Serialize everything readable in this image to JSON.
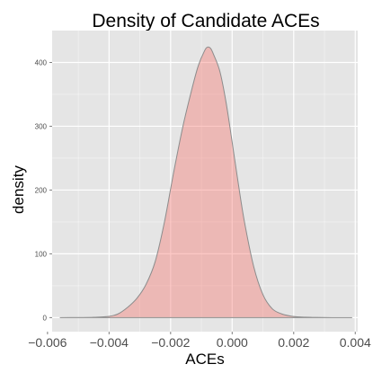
{
  "chart_data": {
    "type": "area",
    "title": "Density of Candidate ACEs",
    "xlabel": "ACEs",
    "ylabel": "density",
    "xlim": [
      -0.00585,
      0.00408
    ],
    "ylim": [
      -22,
      450
    ],
    "x_ticks": [
      {
        "value": -0.006,
        "label": "−0.006"
      },
      {
        "value": -0.004,
        "label": "−0.004"
      },
      {
        "value": -0.002,
        "label": "−0.002"
      },
      {
        "value": 0.0,
        "label": "0.000"
      },
      {
        "value": 0.002,
        "label": "0.002"
      },
      {
        "value": 0.004,
        "label": "0.004"
      }
    ],
    "y_ticks": [
      {
        "value": 0,
        "label": "0"
      },
      {
        "value": 100,
        "label": "100"
      },
      {
        "value": 200,
        "label": "200"
      },
      {
        "value": 300,
        "label": "300"
      },
      {
        "value": 400,
        "label": "400"
      }
    ],
    "grid": true,
    "fill_color": "#F8766D",
    "fill_opacity": 0.4,
    "line_color": "#8c8c8c",
    "panel_color": "#e5e5e5",
    "grid_color": "#ffffff",
    "x": [
      -0.0056,
      -0.005,
      -0.0045,
      -0.004,
      -0.0037,
      -0.0034,
      -0.0031,
      -0.0028,
      -0.0025,
      -0.0022,
      -0.0019,
      -0.0016,
      -0.0013,
      -0.0011,
      -0.0009,
      -0.0008,
      -0.0007,
      -0.0006,
      -0.0004,
      -0.0002,
      0.0,
      0.0002,
      0.0004,
      0.0007,
      0.001,
      0.0013,
      0.0016,
      0.0019,
      0.0022,
      0.0026,
      0.003,
      0.0035,
      0.0039
    ],
    "y": [
      0,
      0.2,
      0.5,
      2,
      6,
      16,
      30,
      52,
      88,
      150,
      228,
      300,
      360,
      395,
      418,
      424,
      422,
      412,
      386,
      338,
      275,
      210,
      150,
      80,
      36,
      14,
      6,
      2.5,
      1,
      0.4,
      0.15,
      0.05,
      0
    ]
  }
}
